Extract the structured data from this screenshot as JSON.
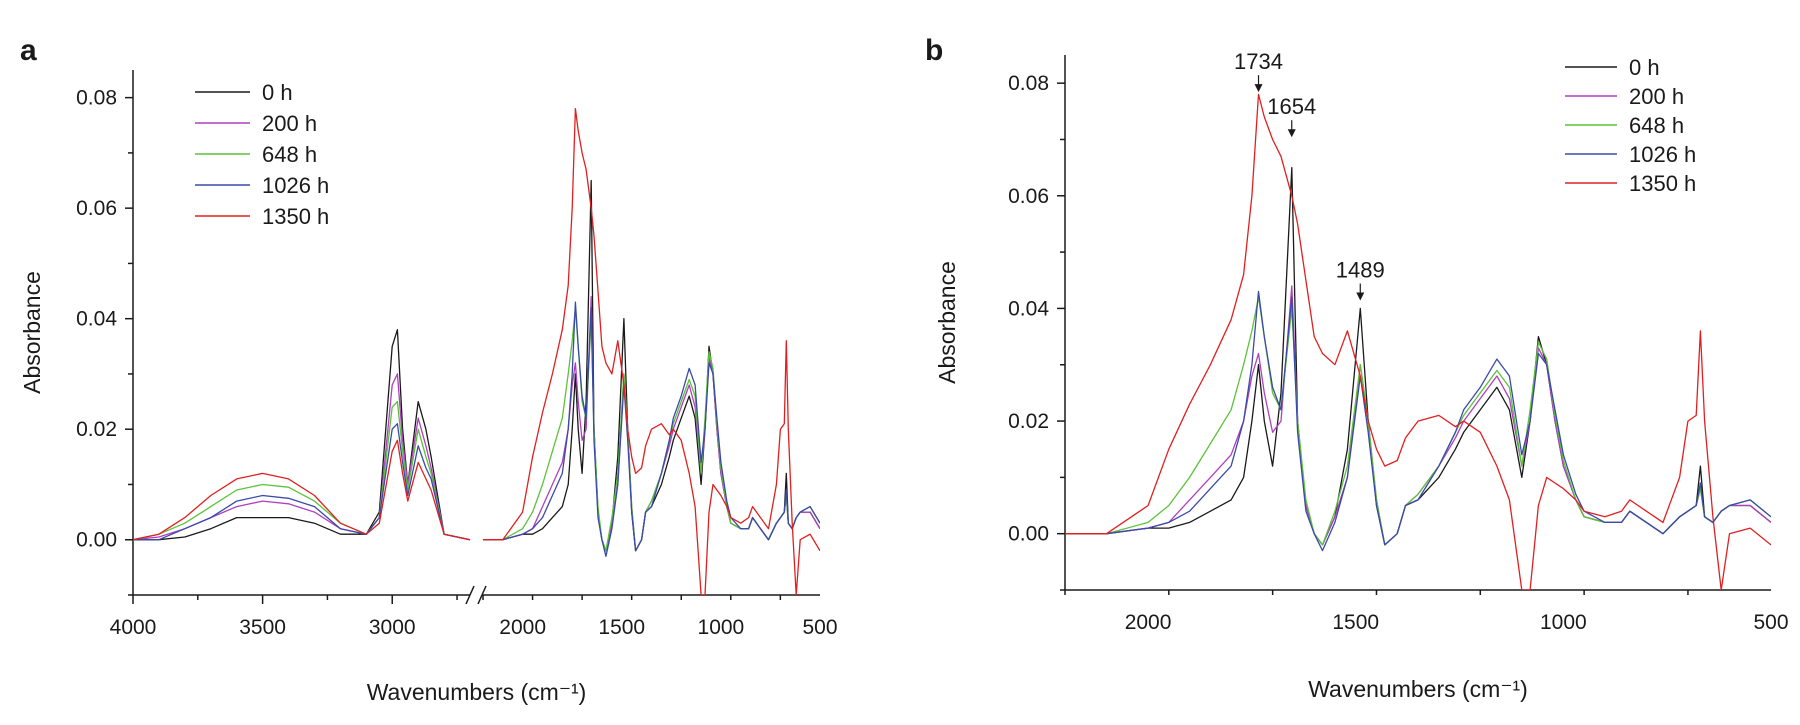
{
  "figure": {
    "panel_a_letter": "a",
    "panel_b_letter": "b"
  },
  "chart_data": [
    {
      "panel": "a",
      "type": "line",
      "xlabel": "Wavenumbers (cm⁻¹)",
      "ylabel": "Absorbance",
      "x_reversed": true,
      "x_axis_break": [
        2700,
        2200
      ],
      "xlim": [
        4000,
        500
      ],
      "ylim": [
        -0.01,
        0.085
      ],
      "xticks": [
        4000,
        3500,
        3000,
        2000,
        1500,
        1000,
        500
      ],
      "yticks": [
        0.0,
        0.02,
        0.04,
        0.06,
        0.08
      ],
      "ytick_labels": [
        "0.00",
        "0.02",
        "0.04",
        "0.06",
        "0.08"
      ],
      "legend_position": "top-left",
      "x": [
        4000,
        3900,
        3800,
        3700,
        3600,
        3500,
        3400,
        3300,
        3200,
        3100,
        3050,
        3000,
        2980,
        2960,
        2940,
        2900,
        2870,
        2850,
        2800,
        2700,
        2200,
        2100,
        2000,
        1950,
        1900,
        1850,
        1800,
        1770,
        1750,
        1734,
        1720,
        1700,
        1680,
        1654,
        1640,
        1620,
        1600,
        1580,
        1550,
        1520,
        1489,
        1470,
        1450,
        1430,
        1400,
        1380,
        1350,
        1300,
        1260,
        1240,
        1200,
        1160,
        1130,
        1100,
        1080,
        1060,
        1040,
        1020,
        1000,
        970,
        950,
        900,
        860,
        840,
        800,
        760,
        720,
        700,
        680,
        670,
        660,
        640,
        620,
        600,
        550,
        500
      ],
      "series": [
        {
          "name": "0 h",
          "color": "#1a1a1a",
          "values": [
            0.0,
            0.0,
            0.0005,
            0.002,
            0.004,
            0.004,
            0.004,
            0.003,
            0.001,
            0.001,
            0.005,
            0.035,
            0.038,
            0.02,
            0.01,
            0.025,
            0.02,
            0.015,
            0.001,
            0.0,
            0.0,
            0.0,
            0.001,
            0.001,
            0.002,
            0.004,
            0.006,
            0.01,
            0.02,
            0.03,
            0.02,
            0.012,
            0.025,
            0.065,
            0.02,
            0.005,
            0.0,
            -0.002,
            0.003,
            0.015,
            0.04,
            0.02,
            0.005,
            -0.002,
            0.0,
            0.005,
            0.006,
            0.01,
            0.015,
            0.018,
            0.022,
            0.026,
            0.022,
            0.01,
            0.02,
            0.035,
            0.03,
            0.02,
            0.012,
            0.006,
            0.003,
            0.002,
            0.002,
            0.004,
            0.002,
            0.0,
            0.003,
            0.004,
            0.005,
            0.012,
            0.003,
            0.002,
            0.004,
            0.005,
            0.005,
            0.002
          ]
        },
        {
          "name": "200 h",
          "color": "#b03fc0",
          "values": [
            0.0,
            0.0005,
            0.002,
            0.004,
            0.006,
            0.007,
            0.0065,
            0.005,
            0.002,
            0.001,
            0.004,
            0.028,
            0.03,
            0.018,
            0.01,
            0.022,
            0.017,
            0.013,
            0.001,
            0.0,
            0.0,
            0.0,
            0.001,
            0.002,
            0.006,
            0.01,
            0.014,
            0.02,
            0.028,
            0.032,
            0.025,
            0.018,
            0.02,
            0.044,
            0.02,
            0.005,
            0.0,
            -0.002,
            0.003,
            0.01,
            0.03,
            0.02,
            0.006,
            -0.002,
            0.0,
            0.005,
            0.007,
            0.012,
            0.017,
            0.02,
            0.024,
            0.028,
            0.024,
            0.012,
            0.02,
            0.033,
            0.03,
            0.02,
            0.012,
            0.006,
            0.003,
            0.002,
            0.002,
            0.004,
            0.002,
            0.0,
            0.003,
            0.004,
            0.005,
            0.008,
            0.003,
            0.002,
            0.004,
            0.005,
            0.005,
            0.002
          ]
        },
        {
          "name": "648 h",
          "color": "#5cc23a",
          "values": [
            0.0,
            0.001,
            0.003,
            0.006,
            0.009,
            0.01,
            0.0095,
            0.007,
            0.003,
            0.001,
            0.004,
            0.024,
            0.025,
            0.016,
            0.009,
            0.02,
            0.015,
            0.012,
            0.001,
            0.0,
            0.0,
            0.0,
            0.002,
            0.005,
            0.01,
            0.016,
            0.022,
            0.03,
            0.036,
            0.042,
            0.035,
            0.025,
            0.022,
            0.04,
            0.02,
            0.006,
            0.0,
            -0.002,
            0.004,
            0.012,
            0.03,
            0.02,
            0.006,
            -0.002,
            0.0,
            0.005,
            0.007,
            0.012,
            0.018,
            0.021,
            0.025,
            0.029,
            0.026,
            0.012,
            0.022,
            0.034,
            0.031,
            0.021,
            0.013,
            0.006,
            0.003,
            0.002,
            0.002,
            0.004,
            0.002,
            0.0,
            0.003,
            0.004,
            0.005,
            0.008,
            0.003,
            0.002,
            0.004,
            0.005,
            0.006,
            0.003
          ]
        },
        {
          "name": "1026 h",
          "color": "#3a4aa8",
          "values": [
            0.0,
            0.0,
            0.002,
            0.004,
            0.007,
            0.008,
            0.0075,
            0.006,
            0.002,
            0.001,
            0.004,
            0.02,
            0.021,
            0.014,
            0.008,
            0.017,
            0.013,
            0.011,
            0.001,
            0.0,
            0.0,
            0.0,
            0.001,
            0.002,
            0.004,
            0.008,
            0.012,
            0.02,
            0.03,
            0.043,
            0.035,
            0.026,
            0.022,
            0.042,
            0.018,
            0.004,
            0.0,
            -0.003,
            0.002,
            0.01,
            0.028,
            0.018,
            0.005,
            -0.002,
            0.0,
            0.005,
            0.006,
            0.012,
            0.018,
            0.022,
            0.026,
            0.031,
            0.028,
            0.014,
            0.02,
            0.032,
            0.03,
            0.022,
            0.014,
            0.007,
            0.004,
            0.002,
            0.002,
            0.004,
            0.002,
            0.0,
            0.003,
            0.004,
            0.005,
            0.009,
            0.003,
            0.002,
            0.004,
            0.005,
            0.006,
            0.003
          ]
        },
        {
          "name": "1350 h",
          "color": "#e02020",
          "values": [
            0.0,
            0.001,
            0.004,
            0.008,
            0.011,
            0.012,
            0.011,
            0.008,
            0.003,
            0.001,
            0.003,
            0.016,
            0.018,
            0.012,
            0.007,
            0.014,
            0.011,
            0.009,
            0.001,
            0.0,
            0.0,
            0.0,
            0.005,
            0.015,
            0.023,
            0.03,
            0.038,
            0.046,
            0.06,
            0.078,
            0.074,
            0.07,
            0.067,
            0.06,
            0.055,
            0.045,
            0.035,
            0.032,
            0.03,
            0.036,
            0.028,
            0.02,
            0.015,
            0.012,
            0.013,
            0.017,
            0.02,
            0.021,
            0.019,
            0.02,
            0.018,
            0.012,
            0.006,
            -0.01,
            -0.01,
            0.005,
            0.01,
            0.009,
            0.008,
            0.006,
            0.004,
            0.003,
            0.004,
            0.006,
            0.004,
            0.002,
            0.01,
            0.02,
            0.021,
            0.036,
            0.02,
            0.003,
            -0.01,
            0.0,
            0.001,
            -0.002
          ]
        }
      ]
    },
    {
      "panel": "b",
      "type": "line",
      "xlabel": "Wavenumbers (cm⁻¹)",
      "ylabel": "Absorbance",
      "x_reversed": true,
      "xlim": [
        2200,
        500
      ],
      "ylim": [
        -0.01,
        0.085
      ],
      "xticks": [
        2000,
        1500,
        1000,
        500
      ],
      "yticks": [
        0.0,
        0.02,
        0.04,
        0.06,
        0.08
      ],
      "ytick_labels": [
        "0.00",
        "0.02",
        "0.04",
        "0.06",
        "0.08"
      ],
      "legend_position": "top-right",
      "annotations": [
        {
          "text": "1734",
          "x": 1734,
          "y": 0.08
        },
        {
          "text": "1654",
          "x": 1654,
          "y": 0.072
        },
        {
          "text": "1489",
          "x": 1489,
          "y": 0.043
        }
      ],
      "x": [
        2200,
        2100,
        2000,
        1950,
        1900,
        1850,
        1800,
        1770,
        1750,
        1734,
        1720,
        1700,
        1680,
        1654,
        1640,
        1620,
        1600,
        1580,
        1550,
        1520,
        1489,
        1470,
        1450,
        1430,
        1400,
        1380,
        1350,
        1300,
        1260,
        1240,
        1200,
        1160,
        1130,
        1100,
        1080,
        1060,
        1040,
        1020,
        1000,
        970,
        950,
        900,
        860,
        840,
        800,
        760,
        720,
        700,
        680,
        670,
        660,
        640,
        620,
        600,
        550,
        500
      ],
      "series": [
        {
          "name": "0 h",
          "color": "#1a1a1a",
          "values": [
            0.0,
            0.0,
            0.001,
            0.001,
            0.002,
            0.004,
            0.006,
            0.01,
            0.02,
            0.03,
            0.02,
            0.012,
            0.025,
            0.065,
            0.02,
            0.005,
            0.0,
            -0.002,
            0.003,
            0.015,
            0.04,
            0.02,
            0.005,
            -0.002,
            0.0,
            0.005,
            0.006,
            0.01,
            0.015,
            0.018,
            0.022,
            0.026,
            0.022,
            0.01,
            0.02,
            0.035,
            0.03,
            0.02,
            0.012,
            0.006,
            0.003,
            0.002,
            0.002,
            0.004,
            0.002,
            0.0,
            0.003,
            0.004,
            0.005,
            0.012,
            0.003,
            0.002,
            0.004,
            0.005,
            0.005,
            0.002
          ]
        },
        {
          "name": "200 h",
          "color": "#b03fc0",
          "values": [
            0.0,
            0.0,
            0.001,
            0.002,
            0.006,
            0.01,
            0.014,
            0.02,
            0.028,
            0.032,
            0.025,
            0.018,
            0.02,
            0.044,
            0.02,
            0.005,
            0.0,
            -0.002,
            0.003,
            0.01,
            0.03,
            0.02,
            0.006,
            -0.002,
            0.0,
            0.005,
            0.007,
            0.012,
            0.017,
            0.02,
            0.024,
            0.028,
            0.024,
            0.012,
            0.02,
            0.033,
            0.03,
            0.02,
            0.012,
            0.006,
            0.003,
            0.002,
            0.002,
            0.004,
            0.002,
            0.0,
            0.003,
            0.004,
            0.005,
            0.008,
            0.003,
            0.002,
            0.004,
            0.005,
            0.005,
            0.002
          ]
        },
        {
          "name": "648 h",
          "color": "#5cc23a",
          "values": [
            0.0,
            0.0,
            0.002,
            0.005,
            0.01,
            0.016,
            0.022,
            0.03,
            0.036,
            0.042,
            0.035,
            0.025,
            0.022,
            0.04,
            0.02,
            0.006,
            0.0,
            -0.002,
            0.004,
            0.012,
            0.03,
            0.02,
            0.006,
            -0.002,
            0.0,
            0.005,
            0.007,
            0.012,
            0.018,
            0.021,
            0.025,
            0.029,
            0.026,
            0.012,
            0.022,
            0.034,
            0.031,
            0.021,
            0.013,
            0.006,
            0.003,
            0.002,
            0.002,
            0.004,
            0.002,
            0.0,
            0.003,
            0.004,
            0.005,
            0.008,
            0.003,
            0.002,
            0.004,
            0.005,
            0.006,
            0.003
          ]
        },
        {
          "name": "1026 h",
          "color": "#3a4aa8",
          "values": [
            0.0,
            0.0,
            0.001,
            0.002,
            0.004,
            0.008,
            0.012,
            0.02,
            0.03,
            0.043,
            0.035,
            0.026,
            0.022,
            0.042,
            0.018,
            0.004,
            0.0,
            -0.003,
            0.002,
            0.01,
            0.028,
            0.018,
            0.005,
            -0.002,
            0.0,
            0.005,
            0.006,
            0.012,
            0.018,
            0.022,
            0.026,
            0.031,
            0.028,
            0.014,
            0.02,
            0.032,
            0.03,
            0.022,
            0.014,
            0.007,
            0.004,
            0.002,
            0.002,
            0.004,
            0.002,
            0.0,
            0.003,
            0.004,
            0.005,
            0.009,
            0.003,
            0.002,
            0.004,
            0.005,
            0.006,
            0.003
          ]
        },
        {
          "name": "1350 h",
          "color": "#e02020",
          "values": [
            0.0,
            0.0,
            0.005,
            0.015,
            0.023,
            0.03,
            0.038,
            0.046,
            0.06,
            0.078,
            0.074,
            0.07,
            0.067,
            0.06,
            0.055,
            0.045,
            0.035,
            0.032,
            0.03,
            0.036,
            0.028,
            0.02,
            0.015,
            0.012,
            0.013,
            0.017,
            0.02,
            0.021,
            0.019,
            0.02,
            0.018,
            0.012,
            0.006,
            -0.01,
            -0.01,
            0.005,
            0.01,
            0.009,
            0.008,
            0.006,
            0.004,
            0.003,
            0.004,
            0.006,
            0.004,
            0.002,
            0.01,
            0.02,
            0.021,
            0.036,
            0.02,
            0.003,
            -0.01,
            0.0,
            0.001,
            -0.002
          ]
        }
      ]
    }
  ]
}
